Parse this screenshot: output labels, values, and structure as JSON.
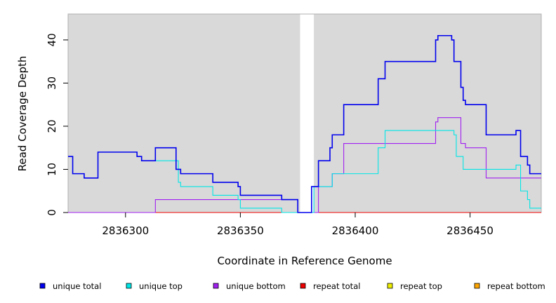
{
  "chart_data": {
    "type": "line",
    "step": true,
    "xlabel": "Coordinate in Reference Genome",
    "ylabel": "Read Coverage Depth",
    "xlim": [
      2836275,
      2836481
    ],
    "ylim": [
      0,
      46
    ],
    "x_ticks": [
      2836300,
      2836350,
      2836400,
      2836450
    ],
    "y_ticks": [
      0,
      10,
      20,
      30,
      40
    ],
    "background": "#d9d9d9",
    "gap_region": [
      2836376,
      2836382
    ],
    "grid": false,
    "legend_position": "bottom",
    "series": [
      {
        "name": "unique total",
        "color": "#0000ee",
        "points": [
          [
            2836275,
            13
          ],
          [
            2836277,
            9
          ],
          [
            2836282,
            8
          ],
          [
            2836288,
            14
          ],
          [
            2836305,
            13
          ],
          [
            2836307,
            12
          ],
          [
            2836313,
            15
          ],
          [
            2836322,
            10
          ],
          [
            2836324,
            9
          ],
          [
            2836338,
            7
          ],
          [
            2836349,
            6
          ],
          [
            2836350,
            4
          ],
          [
            2836368,
            3
          ],
          [
            2836375,
            0
          ],
          [
            2836381,
            6
          ],
          [
            2836384,
            12
          ],
          [
            2836389,
            15
          ],
          [
            2836390,
            18
          ],
          [
            2836395,
            25
          ],
          [
            2836410,
            31
          ],
          [
            2836413,
            35
          ],
          [
            2836435,
            40
          ],
          [
            2836436,
            41
          ],
          [
            2836442,
            40
          ],
          [
            2836443,
            35
          ],
          [
            2836446,
            29
          ],
          [
            2836447,
            26
          ],
          [
            2836448,
            25
          ],
          [
            2836457,
            18
          ],
          [
            2836470,
            19
          ],
          [
            2836472,
            13
          ],
          [
            2836475,
            11
          ],
          [
            2836476,
            9
          ],
          [
            2836481,
            9
          ]
        ]
      },
      {
        "name": "unique top",
        "color": "#00e5e5",
        "points": [
          [
            2836275,
            13
          ],
          [
            2836277,
            9
          ],
          [
            2836282,
            8
          ],
          [
            2836288,
            14
          ],
          [
            2836305,
            13
          ],
          [
            2836307,
            12
          ],
          [
            2836313,
            12
          ],
          [
            2836323,
            7
          ],
          [
            2836324,
            6
          ],
          [
            2836338,
            4
          ],
          [
            2836349,
            3
          ],
          [
            2836350,
            1
          ],
          [
            2836368,
            0
          ],
          [
            2836382,
            6
          ],
          [
            2836390,
            9
          ],
          [
            2836410,
            15
          ],
          [
            2836413,
            19
          ],
          [
            2836443,
            18
          ],
          [
            2836444,
            13
          ],
          [
            2836447,
            10
          ],
          [
            2836470,
            11
          ],
          [
            2836472,
            5
          ],
          [
            2836475,
            3
          ],
          [
            2836476,
            1
          ],
          [
            2836481,
            1
          ]
        ]
      },
      {
        "name": "unique bottom",
        "color": "#a020f0",
        "points": [
          [
            2836275,
            0
          ],
          [
            2836313,
            3
          ],
          [
            2836375,
            0
          ],
          [
            2836384,
            6
          ],
          [
            2836390,
            9
          ],
          [
            2836395,
            16
          ],
          [
            2836435,
            21
          ],
          [
            2836436,
            22
          ],
          [
            2836446,
            16
          ],
          [
            2836448,
            15
          ],
          [
            2836457,
            8
          ],
          [
            2836481,
            8
          ]
        ]
      },
      {
        "name": "repeat total",
        "color": "#ee0000",
        "points": [
          [
            2836275,
            0
          ],
          [
            2836481,
            0
          ]
        ]
      },
      {
        "name": "repeat top",
        "color": "#eeee00",
        "points": [
          [
            2836275,
            0
          ],
          [
            2836481,
            0
          ]
        ]
      },
      {
        "name": "repeat bottom",
        "color": "#ffa500",
        "points": [
          [
            2836275,
            0
          ],
          [
            2836481,
            0
          ]
        ]
      }
    ]
  }
}
